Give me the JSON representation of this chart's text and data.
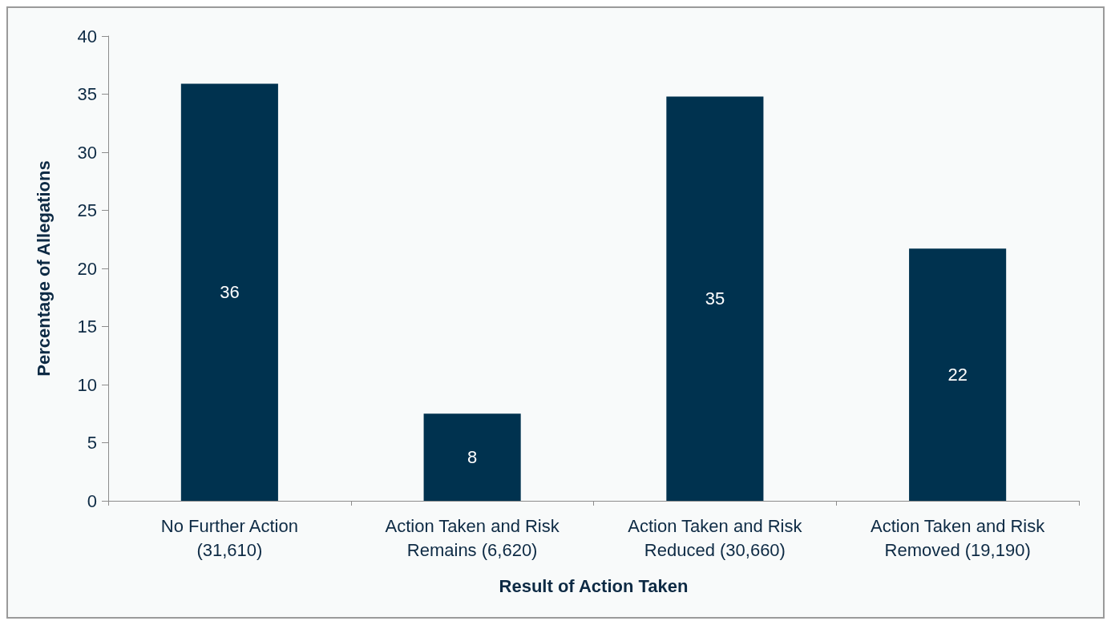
{
  "chart_data": {
    "type": "bar",
    "xlabel": "Result of Action Taken",
    "ylabel": "Percentage of Allegations",
    "categories": [
      "No Further Action (31,610)",
      "Action Taken and Risk Remains (6,620)",
      "Action Taken and Risk Reduced (30,660)",
      "Action Taken and Risk Removed (19,190)"
    ],
    "values": [
      35.9,
      7.5,
      34.8,
      21.7
    ],
    "value_labels": [
      "36",
      "8",
      "35",
      "22"
    ],
    "color": "#00324f",
    "ylim": [
      0,
      40
    ],
    "yticks": [
      0,
      5,
      10,
      15,
      20,
      25,
      30,
      35,
      40
    ],
    "grid": false
  }
}
